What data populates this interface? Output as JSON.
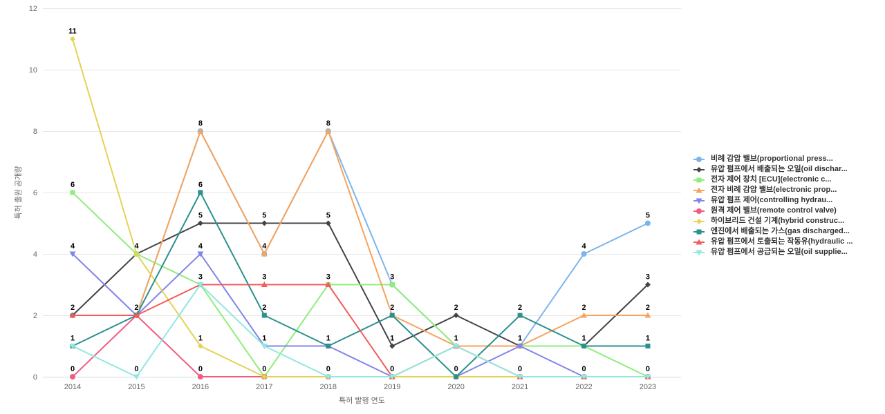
{
  "chart_data": {
    "type": "line",
    "title": "",
    "xlabel": "특허 발행 연도",
    "ylabel": "특허 출원 공개량",
    "x": [
      2014,
      2015,
      2016,
      2017,
      2018,
      2019,
      2020,
      2021,
      2022,
      2023
    ],
    "ylim": [
      0,
      12
    ],
    "yticks": [
      0,
      2,
      4,
      6,
      8,
      10,
      12
    ],
    "grid": true,
    "legend_position": "middle-right",
    "colors": {
      "grid_line": "#e6e6e6",
      "x_axis_line": "#ccd6eb",
      "tick_label": "#666666",
      "legend_text": "#333333",
      "data_label": "#000000"
    },
    "series": [
      {
        "name": "비례 감압 밸브(proportional press...",
        "color": "#7CB5EC",
        "marker": "circle",
        "values": [
          2,
          2,
          8,
          4,
          8,
          3,
          1,
          1,
          4,
          5
        ]
      },
      {
        "name": "유압 펌프에서 배출되는 오일(oil dischar...",
        "color": "#434348",
        "marker": "diamond",
        "values": [
          2,
          4,
          5,
          5,
          5,
          1,
          2,
          1,
          1,
          3
        ]
      },
      {
        "name": "전자 제어 장치 [ECU](electronic c...",
        "color": "#90ED7D",
        "marker": "square",
        "values": [
          6,
          4,
          3,
          0,
          3,
          3,
          1,
          1,
          1,
          0
        ]
      },
      {
        "name": "전자 비례 감압 밸브(electronic prop...",
        "color": "#F7A35C",
        "marker": "triangle",
        "values": [
          2,
          2,
          8,
          4,
          8,
          2,
          1,
          1,
          2,
          2
        ]
      },
      {
        "name": "유압 펌프 제어(controlling hydrau...",
        "color": "#8085E9",
        "marker": "triangle-down",
        "values": [
          4,
          2,
          4,
          1,
          1,
          0,
          0,
          1,
          0,
          0
        ]
      },
      {
        "name": "원격 제어 밸브(remote control valve)",
        "color": "#F15C80",
        "marker": "circle",
        "values": [
          0,
          2,
          0,
          0,
          0,
          0,
          0,
          0,
          0,
          0
        ]
      },
      {
        "name": "하이브리드 건설 기계(hybrid construc...",
        "color": "#E4D354",
        "marker": "diamond",
        "values": [
          11,
          4,
          1,
          0,
          0,
          0,
          0,
          0,
          0,
          0
        ]
      },
      {
        "name": "엔진에서 배출되는 가스(gas discharged...",
        "color": "#2B908F",
        "marker": "square",
        "values": [
          1,
          2,
          6,
          2,
          1,
          2,
          0,
          2,
          1,
          1
        ]
      },
      {
        "name": "유압 펌프에서 토출되는 작동유(hydraulic ...",
        "color": "#F45B5B",
        "marker": "triangle",
        "values": [
          2,
          2,
          3,
          3,
          3,
          0,
          1,
          0,
          0,
          0
        ]
      },
      {
        "name": "유압 펌프에서 공급되는 오일(oil supplie...",
        "color": "#91E8E1",
        "marker": "triangle-down",
        "values": [
          1,
          0,
          3,
          1,
          0,
          0,
          1,
          0,
          0,
          0
        ]
      }
    ]
  }
}
